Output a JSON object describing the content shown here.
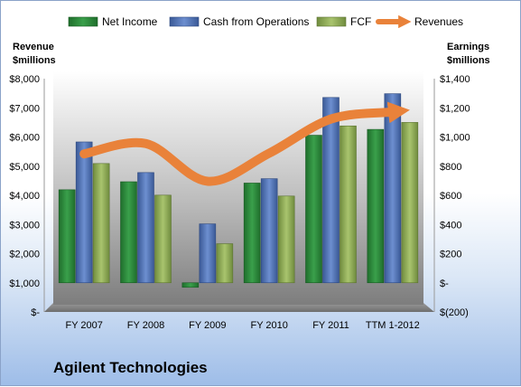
{
  "company_name": "Agilent Technologies",
  "colors": {
    "net_income": "#2e8b3e",
    "cash_from_operations": "#4a6fb5",
    "fcf": "#8fad55",
    "revenues": "#e9823a"
  },
  "chart_data": {
    "type": "bar",
    "categories": [
      "FY 2007",
      "FY 2008",
      "FY 2009",
      "FY 2010",
      "FY 2011",
      "TTM 1-2012"
    ],
    "series": [
      {
        "name": "Net Income",
        "type": "bar",
        "axis": "right",
        "values": [
          638,
          693,
          -31,
          684,
          1012,
          1052
        ]
      },
      {
        "name": "Cash from Operations",
        "type": "bar",
        "axis": "right",
        "values": [
          966,
          756,
          404,
          714,
          1271,
          1297
        ]
      },
      {
        "name": "FCF",
        "type": "bar",
        "axis": "right",
        "values": [
          818,
          601,
          268,
          595,
          1076,
          1100
        ]
      },
      {
        "name": "Revenues",
        "type": "line",
        "axis": "left",
        "values": [
          5420,
          5774,
          4481,
          5444,
          6615,
          6858
        ]
      }
    ],
    "left_axis": {
      "label_line1": "Revenue",
      "label_line2": "$millions",
      "range": [
        0,
        8000
      ],
      "ticks": [
        {
          "value": 0,
          "label": "$-"
        },
        {
          "value": 1000,
          "label": "$1,000"
        },
        {
          "value": 2000,
          "label": "$2,000"
        },
        {
          "value": 3000,
          "label": "$3,000"
        },
        {
          "value": 4000,
          "label": "$4,000"
        },
        {
          "value": 5000,
          "label": "$5,000"
        },
        {
          "value": 6000,
          "label": "$6,000"
        },
        {
          "value": 7000,
          "label": "$7,000"
        },
        {
          "value": 8000,
          "label": "$8,000"
        }
      ]
    },
    "right_axis": {
      "label_line1": "Earnings",
      "label_line2": "$millions",
      "range": [
        -200,
        1400
      ],
      "ticks": [
        {
          "value": -200,
          "label": "$(200)"
        },
        {
          "value": 0,
          "label": "$-"
        },
        {
          "value": 200,
          "label": "$200"
        },
        {
          "value": 400,
          "label": "$400"
        },
        {
          "value": 600,
          "label": "$600"
        },
        {
          "value": 800,
          "label": "$800"
        },
        {
          "value": 1000,
          "label": "$1,000"
        },
        {
          "value": 1200,
          "label": "$1,200"
        },
        {
          "value": 1400,
          "label": "$1,400"
        }
      ]
    },
    "legend": {
      "position": "top",
      "items": [
        "Net Income",
        "Cash from Operations",
        "FCF",
        "Revenues"
      ]
    },
    "grid": false,
    "plot_background": "gray-gradient"
  }
}
